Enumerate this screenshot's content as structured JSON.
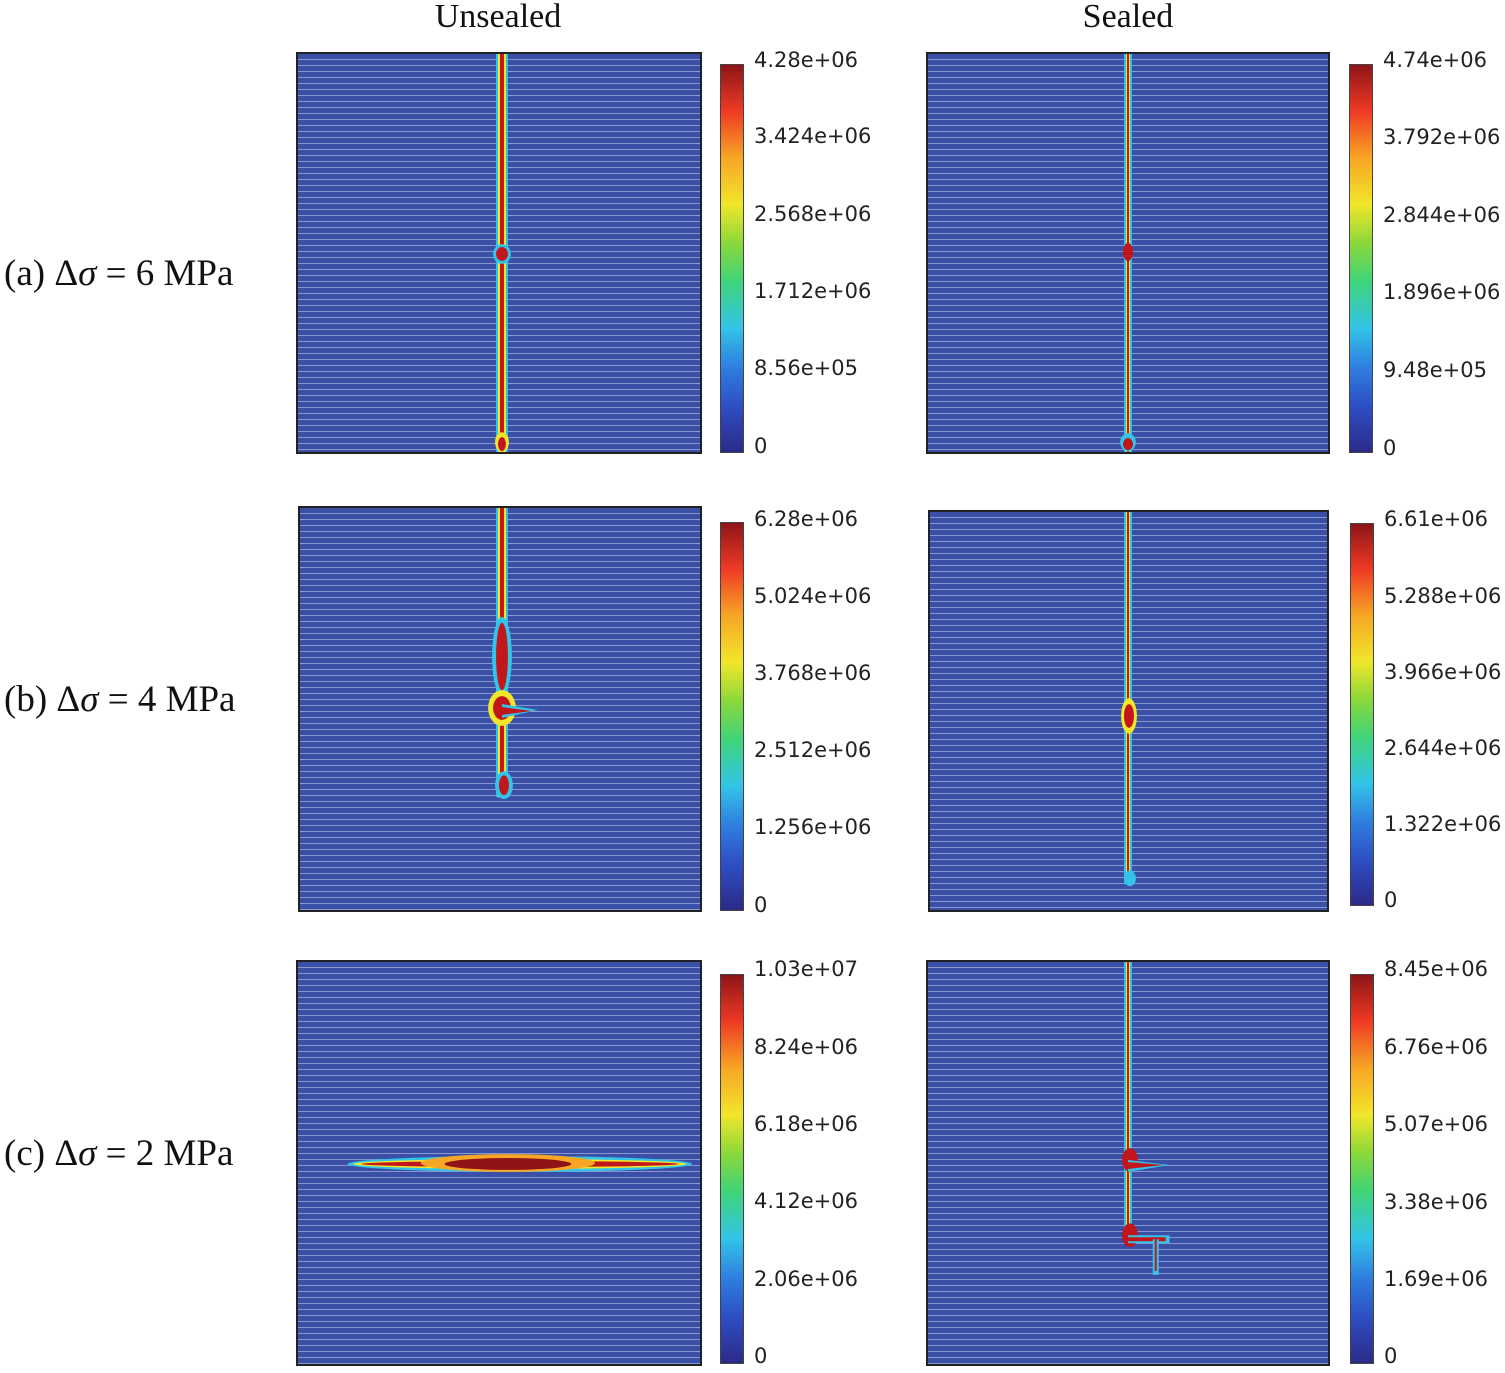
{
  "columns": [
    "Unsealed",
    "Sealed"
  ],
  "rows": [
    {
      "label_prefix": "(a) ",
      "delta": "Δ",
      "sigma": "σ",
      "label_suffix": " = 6 MPa"
    },
    {
      "label_prefix": "(b) ",
      "delta": "Δ",
      "sigma": "σ",
      "label_suffix": " = 4 MPa"
    },
    {
      "label_prefix": "(c) ",
      "delta": "Δ",
      "sigma": "σ",
      "label_suffix": " = 2 MPa"
    }
  ],
  "colorbars": {
    "a_unsealed": [
      "4.28e+06",
      "3.424e+06",
      "2.568e+06",
      "1.712e+06",
      "8.56e+05",
      "0"
    ],
    "a_sealed": [
      "4.74e+06",
      "3.792e+06",
      "2.844e+06",
      "1.896e+06",
      "9.48e+05",
      "0"
    ],
    "b_unsealed": [
      "6.28e+06",
      "5.024e+06",
      "3.768e+06",
      "2.512e+06",
      "1.256e+06",
      "0"
    ],
    "b_sealed": [
      "6.61e+06",
      "5.288e+06",
      "3.966e+06",
      "2.644e+06",
      "1.322e+06",
      "0"
    ],
    "c_unsealed": [
      "1.03e+07",
      "8.24e+06",
      "6.18e+06",
      "4.12e+06",
      "2.06e+06",
      "0"
    ],
    "c_sealed": [
      "8.45e+06",
      "6.76e+06",
      "5.07e+06",
      "3.38e+06",
      "1.69e+06",
      "0"
    ]
  },
  "colors": {
    "background_blue": "#3a4fa6",
    "fracture_red": "#c0161c",
    "fracture_yellow": "#f2e62a",
    "fracture_cyan": "#33c4e8"
  }
}
